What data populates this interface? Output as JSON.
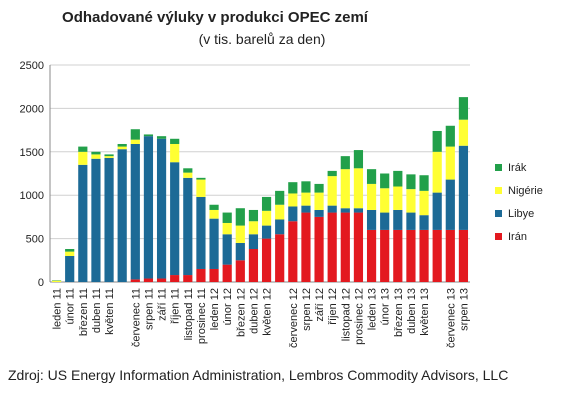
{
  "chart_data": {
    "type": "stacked_bar",
    "title": "Odhadované výluky v produkci OPEC zemí",
    "subtitle": "(v tis. barelů za den)",
    "source": "Zdroj: US Energy Information Administration, Lembros Commodity Advisors, LLC",
    "categories": [
      "leden 11",
      "únor 11",
      "březen 11",
      "duben 11",
      "květen 11",
      null,
      "červenec 11",
      "srpen 11",
      "září 11",
      "říjen 11",
      "listopad 11",
      "prosinec 11",
      "leden 12",
      "únor 12",
      "březen 12",
      "duben 12",
      "květen 12",
      null,
      "červenec 12",
      "srpen 12",
      "září 12",
      "říjen 12",
      "listopad 12",
      "prosinec 12",
      "leden 13",
      "únor 13",
      "březen 13",
      "duben 13",
      "květen 13",
      null,
      "červenec 13",
      "srpen 13"
    ],
    "series": [
      {
        "name": "Irán",
        "color": "#e3191f",
        "values": [
          0,
          0,
          0,
          0,
          0,
          0,
          30,
          40,
          40,
          80,
          80,
          150,
          150,
          200,
          250,
          380,
          500,
          550,
          700,
          800,
          750,
          800,
          800,
          800,
          600,
          600,
          600,
          600,
          600,
          600,
          600,
          600
        ]
      },
      {
        "name": "Libye",
        "color": "#1c6a96",
        "values": [
          0,
          300,
          1350,
          1420,
          1430,
          1530,
          1560,
          1640,
          1610,
          1300,
          1120,
          830,
          580,
          350,
          200,
          170,
          150,
          170,
          170,
          80,
          80,
          80,
          50,
          50,
          230,
          200,
          230,
          200,
          170,
          430,
          580,
          970
        ]
      },
      {
        "name": "Nigérie",
        "color": "#ffff33",
        "values": [
          15,
          50,
          150,
          50,
          20,
          30,
          50,
          0,
          0,
          210,
          60,
          200,
          100,
          130,
          200,
          150,
          170,
          170,
          150,
          150,
          200,
          340,
          450,
          460,
          300,
          280,
          270,
          270,
          280,
          470,
          380,
          300
        ]
      },
      {
        "name": "Irák",
        "color": "#22a04a",
        "values": [
          5,
          30,
          60,
          30,
          20,
          30,
          120,
          20,
          30,
          60,
          50,
          20,
          60,
          120,
          200,
          130,
          160,
          160,
          130,
          130,
          100,
          60,
          150,
          210,
          170,
          170,
          180,
          170,
          180,
          240,
          240,
          260
        ]
      }
    ],
    "ylim": [
      0,
      2500
    ],
    "yticks": [
      0,
      500,
      1000,
      1500,
      2000,
      2500
    ],
    "grid": true,
    "legend": "right"
  }
}
